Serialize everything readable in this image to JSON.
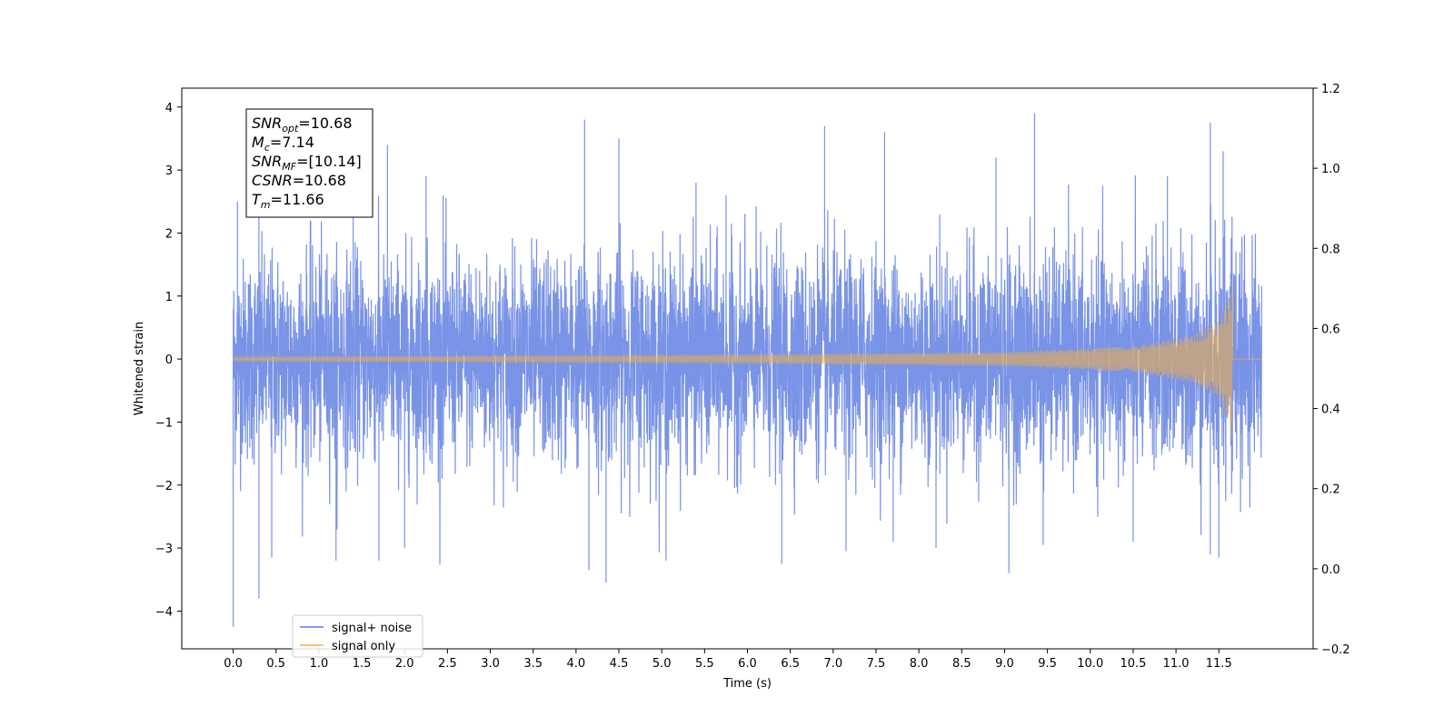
{
  "chart_data": {
    "type": "line",
    "xlabel": "Time (s)",
    "ylabel": "Whitened strain",
    "xlim": [
      -0.6,
      12.6
    ],
    "ylim": [
      -4.6,
      4.3
    ],
    "ylim_right": [
      -0.2,
      1.2
    ],
    "x_ticks": [
      0.0,
      0.5,
      1.0,
      1.5,
      2.0,
      2.5,
      3.0,
      3.5,
      4.0,
      4.5,
      5.0,
      5.5,
      6.0,
      6.5,
      7.0,
      7.5,
      8.0,
      8.5,
      9.0,
      9.5,
      10.0,
      10.5,
      11.0,
      11.5
    ],
    "x_tick_labels": [
      "0.0",
      "0.5",
      "1.0",
      "1.5",
      "2.0",
      "2.5",
      "3.0",
      "3.5",
      "4.0",
      "4.5",
      "5.0",
      "5.5",
      "6.0",
      "6.5",
      "7.0",
      "7.5",
      "8.0",
      "8.5",
      "9.0",
      "9.5",
      "10.0",
      "10.5",
      "11.0",
      "11.5"
    ],
    "y_ticks": [
      -4,
      -3,
      -2,
      -1,
      0,
      1,
      2,
      3,
      4
    ],
    "y_tick_labels": [
      "−4",
      "−3",
      "−2",
      "−1",
      "0",
      "1",
      "2",
      "3",
      "4"
    ],
    "y_ticks_right": [
      -0.2,
      0.0,
      0.2,
      0.4,
      0.6,
      0.8,
      1.0,
      1.2
    ],
    "y_tick_labels_right": [
      "−0.2",
      "0.0",
      "0.2",
      "0.4",
      "0.6",
      "0.8",
      "1.0",
      "1.2"
    ],
    "grid": false,
    "legend_position": "bottom-left",
    "series": [
      {
        "name": "signal+ noise",
        "color": "#5b7be0",
        "kind": "whitened noise plus chirp",
        "x_range": [
          0.0,
          12.0
        ],
        "approx_std": 1.0,
        "min": -4.25,
        "max": 3.9,
        "peaks": [
          [
            0.05,
            2.5
          ],
          [
            0.3,
            2.6
          ],
          [
            0.9,
            2.2
          ],
          [
            1.4,
            3.3
          ],
          [
            1.8,
            3.4
          ],
          [
            2.25,
            2.9
          ],
          [
            2.45,
            2.6
          ],
          [
            4.1,
            3.8
          ],
          [
            4.5,
            3.5
          ],
          [
            5.4,
            2.8
          ],
          [
            5.75,
            2.6
          ],
          [
            6.9,
            3.7
          ],
          [
            7.6,
            3.6
          ],
          [
            8.9,
            3.2
          ],
          [
            9.35,
            3.9
          ],
          [
            10.9,
            2.9
          ],
          [
            11.4,
            3.75
          ],
          [
            11.55,
            3.3
          ]
        ],
        "troughs": [
          [
            0.0,
            -4.25
          ],
          [
            0.3,
            -3.8
          ],
          [
            0.45,
            -3.15
          ],
          [
            1.2,
            -3.2
          ],
          [
            1.7,
            -3.2
          ],
          [
            2.0,
            -3.0
          ],
          [
            4.15,
            -3.35
          ],
          [
            4.35,
            -3.55
          ],
          [
            5.05,
            -3.2
          ],
          [
            6.4,
            -3.25
          ],
          [
            7.15,
            -3.05
          ],
          [
            7.7,
            -2.9
          ],
          [
            8.2,
            -3.0
          ],
          [
            9.05,
            -3.4
          ],
          [
            9.45,
            -2.95
          ],
          [
            10.5,
            -2.9
          ],
          [
            11.4,
            -3.1
          ],
          [
            11.5,
            -3.15
          ]
        ]
      },
      {
        "name": "signal only",
        "color": "#f5b041",
        "kind": "chirp",
        "x_range": [
          0.0,
          12.0
        ],
        "merger_time": 11.66,
        "amplitude_points": [
          [
            0.0,
            0.03
          ],
          [
            3.0,
            0.05
          ],
          [
            6.0,
            0.07
          ],
          [
            9.0,
            0.11
          ],
          [
            10.5,
            0.2
          ],
          [
            11.2,
            0.38
          ],
          [
            11.5,
            0.62
          ],
          [
            11.63,
            1.06
          ],
          [
            11.66,
            1.43
          ]
        ]
      }
    ],
    "annotation": {
      "lines": [
        {
          "base": "SNR",
          "sub": "opt",
          "value": "=10.68"
        },
        {
          "base": "M",
          "sub": "c",
          "value": "=7.14"
        },
        {
          "base": "SNR",
          "sub": "MF",
          "value": "=[10.14]"
        },
        {
          "base": "CSNR",
          "sub": "",
          "value": "=10.68"
        },
        {
          "base": "T",
          "sub": "m",
          "value": "=11.66"
        }
      ]
    }
  }
}
